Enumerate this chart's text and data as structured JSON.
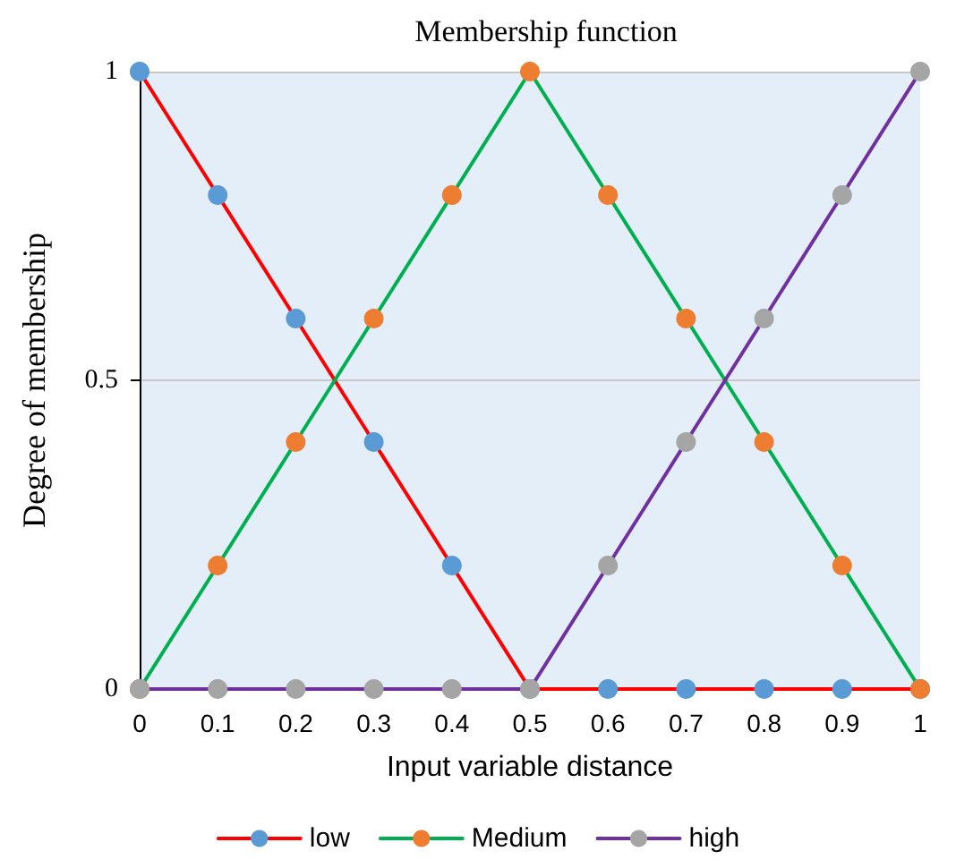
{
  "chart_data": {
    "type": "line",
    "title": "Membership function",
    "xlabel": "Input variable distance",
    "ylabel": "Degree of membership",
    "x": [
      0,
      0.1,
      0.2,
      0.3,
      0.4,
      0.5,
      0.6,
      0.7,
      0.8,
      0.9,
      1
    ],
    "series": [
      {
        "name": "low",
        "color": "#ff0000",
        "colors": [
          "#5b9bd5",
          "#5b9bd5",
          "#5b9bd5",
          "#5b9bd5",
          "#5b9bd5",
          "#5b9bd5",
          "#5b9bd5",
          "#5b9bd5",
          "#5b9bd5",
          "#5b9bd5",
          "#5b9bd5"
        ],
        "values": [
          1,
          0.8,
          0.6,
          0.4,
          0.2,
          0,
          0,
          0,
          0,
          0,
          0
        ]
      },
      {
        "name": "Medium",
        "color": "#00b050",
        "colors": [
          "#ed7d31",
          "#ed7d31",
          "#ed7d31",
          "#ed7d31",
          "#ed7d31",
          "#ed7d31",
          "#ed7d31",
          "#ed7d31",
          "#ed7d31",
          "#ed7d31",
          "#ed7d31"
        ],
        "values": [
          0,
          0.2,
          0.4,
          0.6,
          0.8,
          1,
          0.8,
          0.6,
          0.4,
          0.2,
          0
        ]
      },
      {
        "name": "high",
        "color": "#7030a0",
        "colors": [
          "#a5a5a5",
          "#a5a5a5",
          "#a5a5a5",
          "#a5a5a5",
          "#a5a5a5",
          "#a5a5a5",
          "#a5a5a5",
          "#a5a5a5",
          "#a5a5a5",
          "#a5a5a5",
          "#a5a5a5"
        ],
        "values": [
          0,
          0,
          0,
          0,
          0,
          0,
          0.2,
          0.4,
          0.6,
          0.8,
          1
        ]
      }
    ],
    "xlim": [
      0,
      1
    ],
    "xticks": [
      0,
      0.1,
      0.2,
      0.3,
      0.4,
      0.5,
      0.6,
      0.7,
      0.8,
      0.9,
      1
    ],
    "ylim": [
      0,
      1
    ],
    "yticks": [
      0,
      0.5,
      1
    ],
    "grid": "y",
    "legend": "bottom",
    "marker": "circle",
    "line_style": "solid"
  }
}
